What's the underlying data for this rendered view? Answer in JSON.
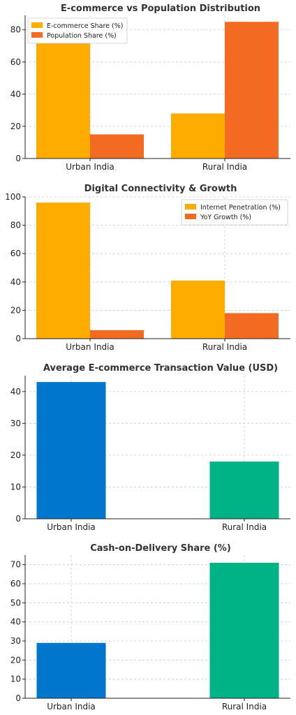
{
  "charts": [
    {
      "type": "bar",
      "title": "E-commerce vs Population Distribution",
      "categories": [
        "Urban India",
        "Rural India"
      ],
      "series": [
        {
          "name": "E-commerce Share (%)",
          "values": [
            72,
            28
          ],
          "color": "#FFAC00"
        },
        {
          "name": "Population Share (%)",
          "values": [
            15,
            85
          ],
          "color": "#F36B22"
        }
      ],
      "ylim": [
        0,
        89
      ],
      "yticks": [
        0,
        20,
        40,
        60,
        80
      ],
      "legend": "top-left",
      "grid": true
    },
    {
      "type": "bar",
      "title": "Digital Connectivity & Growth",
      "categories": [
        "Urban India",
        "Rural India"
      ],
      "series": [
        {
          "name": "Internet Penetration (%)",
          "values": [
            96,
            41
          ],
          "color": "#FFAC00"
        },
        {
          "name": "YoY Growth (%)",
          "values": [
            6,
            18
          ],
          "color": "#F36B22"
        }
      ],
      "ylim": [
        0,
        100
      ],
      "yticks": [
        0,
        20,
        40,
        60,
        80,
        100
      ],
      "legend": "top-right",
      "grid": true
    },
    {
      "type": "bar",
      "title": "Average E-commerce Transaction Value (USD)",
      "categories": [
        "Urban India",
        "Rural India"
      ],
      "values": [
        43,
        18
      ],
      "colors": [
        "#0077CC",
        "#00B386"
      ],
      "ylim": [
        0,
        45
      ],
      "yticks": [
        0,
        10,
        20,
        30,
        40
      ],
      "grid": true
    },
    {
      "type": "bar",
      "title": "Cash-on-Delivery Share (%)",
      "categories": [
        "Urban India",
        "Rural India"
      ],
      "values": [
        29,
        71
      ],
      "colors": [
        "#0077CC",
        "#00B386"
      ],
      "ylim": [
        0,
        75
      ],
      "yticks": [
        0,
        10,
        20,
        30,
        40,
        50,
        60,
        70
      ],
      "grid": true
    }
  ]
}
